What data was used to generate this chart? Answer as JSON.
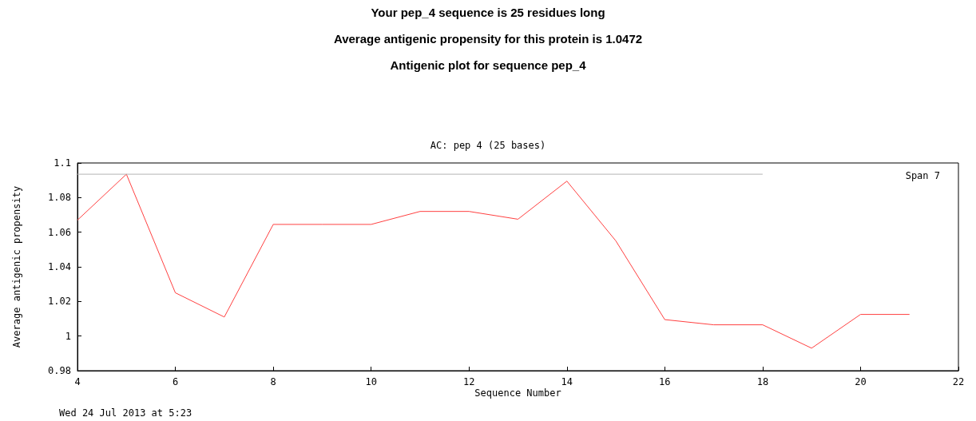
{
  "chart_data": {
    "type": "line",
    "title": "Antigenic plot for sequence pep_4",
    "subtitle": "AC: pep 4 (25 bases)",
    "xlabel": "Sequence Number",
    "ylabel": "Average antigenic propensity",
    "annotations": [
      "Your pep_4 sequence is 25 residues long",
      "Average antigenic propensity for this protein is 1.0472",
      "Span 7",
      "Wed 24 Jul 2013 at 5:23"
    ],
    "x": [
      4,
      5,
      6,
      7,
      8,
      9,
      10,
      11,
      12,
      13,
      14,
      15,
      16,
      17,
      18,
      19,
      20,
      21
    ],
    "series": [
      {
        "color": "#ff4040",
        "values": [
          1.067,
          1.0935,
          1.025,
          1.011,
          1.0645,
          1.0645,
          1.0645,
          1.072,
          1.072,
          1.0675,
          1.0895,
          1.055,
          1.0095,
          1.0065,
          1.0065,
          0.993,
          1.0125,
          1.0125
        ]
      },
      {
        "color": "#b4b4b4",
        "x": [
          4,
          18
        ],
        "values": [
          1.0935,
          1.0935
        ]
      }
    ],
    "xlim": [
      4,
      22
    ],
    "xticks": [
      4,
      6,
      8,
      10,
      12,
      14,
      16,
      18,
      20,
      22
    ],
    "ylim": [
      0.98,
      1.1
    ],
    "yticks": [
      0.98,
      1,
      1.02,
      1.04,
      1.06,
      1.08,
      1.1
    ],
    "grid": false,
    "marker": "none",
    "line_style": "solid"
  }
}
